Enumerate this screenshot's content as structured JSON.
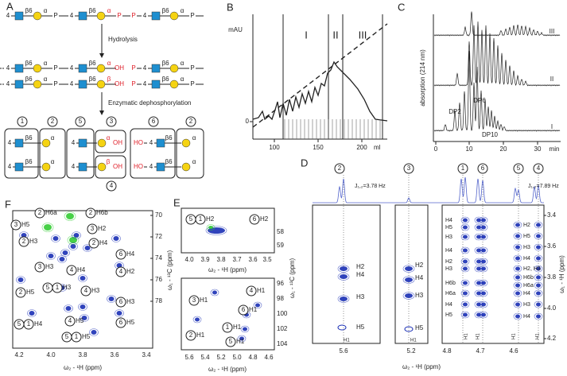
{
  "panels": {
    "A": {
      "texts": [
        "A",
        "4",
        "β6",
        "α",
        "P",
        "4",
        "β6",
        "α",
        "P",
        "P",
        "4",
        "β6",
        "α",
        "P",
        "Hydrolysis",
        "4",
        "β6",
        "α",
        "P",
        "4",
        "β6",
        "α",
        "OH",
        "P",
        "4",
        "β6",
        "α",
        "P",
        "4",
        "β6",
        "α",
        "P",
        "4",
        "β6",
        "β",
        "OH",
        "P",
        "4",
        "β6",
        "α",
        "P",
        "Enzymatic dephosphorylation",
        "1",
        "2",
        "5",
        "3",
        "6",
        "2",
        "4",
        "4",
        "β6",
        "α",
        "4",
        "α",
        "OH",
        "HO",
        "4",
        "β6",
        "α",
        "4",
        "β6",
        "α",
        "4",
        "β",
        "OH",
        "HO",
        "4",
        "β6",
        "α"
      ]
    },
    "B": {
      "texts": [
        "B",
        "mAU",
        "0",
        "I",
        "II",
        "III",
        "100",
        "150",
        "200",
        "ml"
      ]
    },
    "C": {
      "texts": [
        "C",
        "absorption (214 nm)",
        "III",
        "II",
        "I",
        "DP2",
        "DP6",
        "DP10",
        "0",
        "10",
        "20",
        "30",
        "min"
      ]
    },
    "D": {
      "texts": [
        "D",
        "2",
        "3",
        "1",
        "6",
        "5",
        "4",
        "J₁,₂=3.78 Hz",
        "J₁,₂=7.89 Hz",
        "H2",
        "H4",
        "H3",
        "H5",
        "H1",
        "H2",
        "H4",
        "H3",
        "H5",
        "H1",
        "H4",
        "H5",
        "H3",
        "H4",
        "H2",
        "H3",
        "H6b",
        "H6a",
        "H4",
        "H5",
        "H2",
        "H5",
        "H3",
        "H4",
        "H2, H3",
        "H6b",
        "H6a",
        "H4",
        "H3",
        "H4",
        "H1",
        "H1",
        "H1",
        "H1",
        "5.6",
        "5.2",
        "4.8",
        "4.7",
        "4.6",
        "ω₂ - ¹H (ppm)",
        "3.4",
        "3.6",
        "3.8",
        "4.0",
        "4.2",
        "ω₁ - ¹H (ppm)"
      ]
    },
    "E": {
      "texts": [
        "E",
        "5",
        "1",
        "H2",
        "6",
        "H2",
        "4.0",
        "3.9",
        "3.8",
        "3.7",
        "3.6",
        "3.5",
        "ω₂ - ¹H (ppm)",
        "58",
        "59",
        "3",
        "H1",
        "4",
        "H1",
        "6",
        "H1",
        "1",
        "H1",
        "5",
        "H1",
        "2",
        "H1",
        "5.6",
        "5.4",
        "5.2",
        "5.0",
        "4.8",
        "4.6",
        "ω₂ - ¹H (ppm)",
        "96",
        "98",
        "100",
        "102",
        "104",
        "ω₁ - ¹³C (ppm)"
      ]
    },
    "F": {
      "texts": [
        "F",
        "3",
        "H5",
        "2",
        "H6a",
        "2",
        "H6b",
        "2",
        "H3",
        "3",
        "H2",
        "2",
        "H4",
        "3",
        "H3",
        "4",
        "H4",
        "6",
        "H4",
        "4",
        "H2",
        "2",
        "H5",
        "5",
        "1",
        "H3",
        "4",
        "H3",
        "6",
        "H3",
        "5",
        "1",
        "H4",
        "4",
        "H5",
        "5",
        "1",
        "H5",
        "6",
        "H5",
        "4.2",
        "4.0",
        "3.8",
        "3.6",
        "3.4",
        "ω₂ - ¹H (ppm)",
        "70",
        "72",
        "74",
        "76",
        "78",
        "ω₁ - ¹³C (ppm)"
      ]
    }
  }
}
